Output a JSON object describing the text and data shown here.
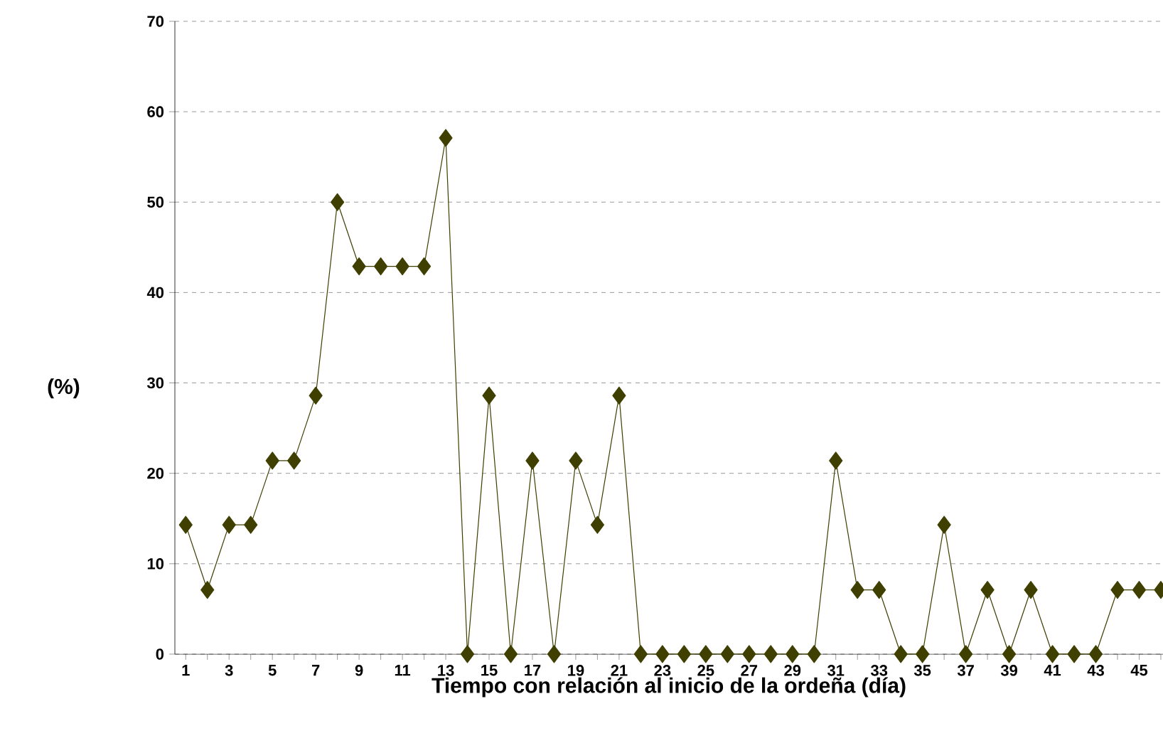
{
  "chart_data": {
    "type": "line",
    "ylabel": "(%)",
    "xlabel": "Tiempo con relación al inicio de la ordeña (día)",
    "categories": [
      "1",
      null,
      "3",
      null,
      "5",
      null,
      "7",
      null,
      "9",
      null,
      "11",
      null,
      "13",
      null,
      "15",
      null,
      "17",
      null,
      "19",
      null,
      "21",
      null,
      "23",
      null,
      "25",
      null,
      "27",
      null,
      "29",
      null,
      "31",
      null,
      "33",
      null,
      "35",
      null,
      "37",
      null,
      "39",
      null,
      "41",
      null,
      "43",
      null,
      "45",
      null
    ],
    "series": [
      {
        "color": "#3f3f00",
        "values": [
          14.3,
          7.1,
          14.3,
          14.3,
          21.4,
          21.4,
          28.6,
          50,
          42.9,
          42.9,
          42.9,
          42.9,
          57.1,
          0,
          28.6,
          0,
          21.4,
          0,
          21.4,
          14.3,
          28.6,
          0,
          0,
          0,
          0,
          0,
          0,
          0,
          0,
          0,
          21.4,
          7.1,
          7.1,
          0,
          0,
          14.3,
          0,
          7.1,
          0,
          7.1,
          0,
          0,
          0,
          7.1,
          7.1,
          7.1
        ]
      }
    ],
    "ylim": [
      0,
      70
    ],
    "yticks": [
      0,
      10,
      20,
      30,
      40,
      50,
      60,
      70
    ],
    "grid": "y",
    "marker": "diamond",
    "line_style": "solid"
  }
}
